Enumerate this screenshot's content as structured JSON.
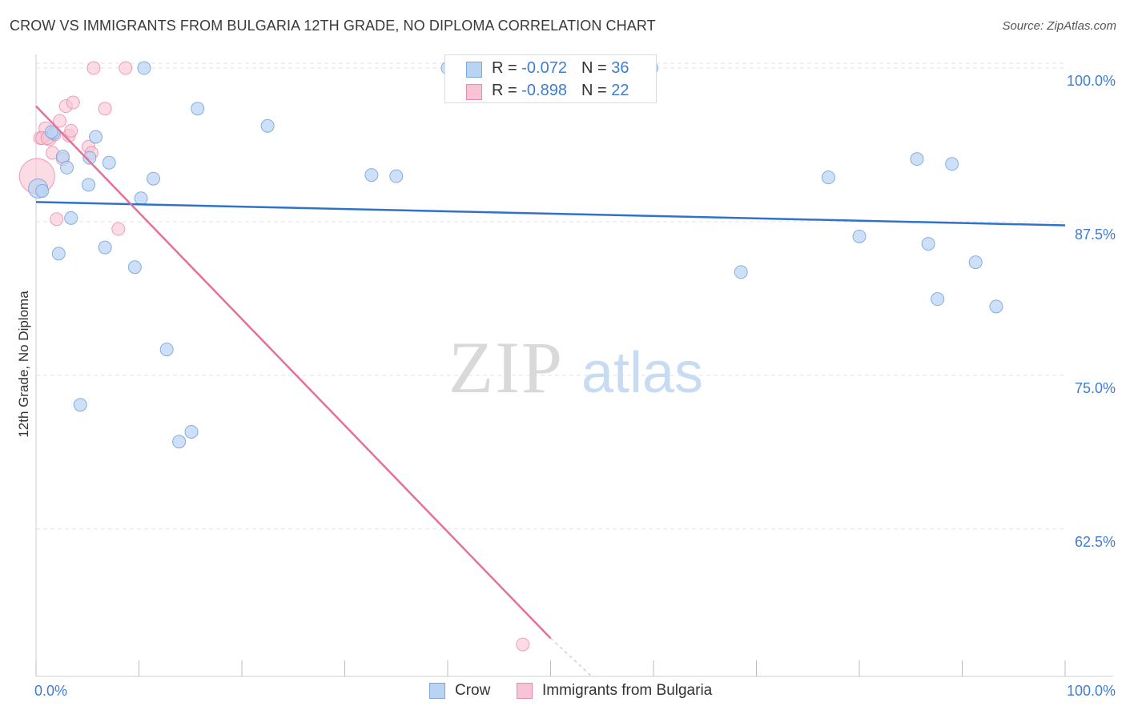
{
  "title": "CROW VS IMMIGRANTS FROM BULGARIA 12TH GRADE, NO DIPLOMA CORRELATION CHART",
  "source": "Source: ZipAtlas.com",
  "watermark": {
    "zip": "ZIP",
    "atlas": "atlas"
  },
  "legend": {
    "row1": {
      "r_label": "R = ",
      "r_value": "-0.072",
      "n_label": "N = ",
      "n_value": "36"
    },
    "row2": {
      "r_label": "R = ",
      "r_value": "-0.898",
      "n_label": "N = ",
      "n_value": "22"
    }
  },
  "bottom_legend": {
    "crow": "Crow",
    "bulgaria": "Immigrants from Bulgaria"
  },
  "colors": {
    "crow_fill": "#b8d3f3",
    "crow_stroke": "#7aa6dd",
    "crow_line": "#2f72cc",
    "bulg_fill": "#f8c4d4",
    "bulg_stroke": "#e88aa9",
    "bulg_line": "#e5709a",
    "axis_label": "#3d7dd6"
  },
  "chart_data": {
    "type": "scatter",
    "title": "CROW VS IMMIGRANTS FROM BULGARIA 12TH GRADE, NO DIPLOMA CORRELATION CHART",
    "xlabel": "",
    "ylabel": "12th Grade, No Diploma",
    "xlim": [
      0,
      100
    ],
    "ylim": [
      50.5,
      101.5
    ],
    "x_tick_labels": [
      "0.0%",
      "100.0%"
    ],
    "y_ticks": [
      100.0,
      87.5,
      75.0,
      62.5
    ],
    "y_tick_labels": [
      "100.0%",
      "87.5%",
      "75.0%",
      "62.5%"
    ],
    "grid": true,
    "series": [
      {
        "name": "Crow",
        "r": -0.072,
        "n": 36,
        "points": [
          [
            0.2,
            90.2
          ],
          [
            0.6,
            90.0
          ],
          [
            1.7,
            94.7
          ],
          [
            2.2,
            84.9
          ],
          [
            2.6,
            92.8
          ],
          [
            3.0,
            91.9
          ],
          [
            3.4,
            87.8
          ],
          [
            4.3,
            72.6
          ],
          [
            5.1,
            90.5
          ],
          [
            5.2,
            92.7
          ],
          [
            5.8,
            94.4
          ],
          [
            6.7,
            85.4
          ],
          [
            7.1,
            92.3
          ],
          [
            9.6,
            83.8
          ],
          [
            10.2,
            89.4
          ],
          [
            10.5,
            100.0
          ],
          [
            11.4,
            91.0
          ],
          [
            12.7,
            77.1
          ],
          [
            13.9,
            69.6
          ],
          [
            15.1,
            70.4
          ],
          [
            15.7,
            96.7
          ],
          [
            22.5,
            95.3
          ],
          [
            32.6,
            91.3
          ],
          [
            35.0,
            91.2
          ],
          [
            40.0,
            100.0
          ],
          [
            59.8,
            100.0
          ],
          [
            68.5,
            83.4
          ],
          [
            77.0,
            91.1
          ],
          [
            80.0,
            86.3
          ],
          [
            85.6,
            92.6
          ],
          [
            86.7,
            85.7
          ],
          [
            87.6,
            81.2
          ],
          [
            89.0,
            92.2
          ],
          [
            91.3,
            84.2
          ],
          [
            93.3,
            80.6
          ],
          [
            1.5,
            94.8
          ]
        ]
      },
      {
        "name": "Immigrants from Bulgaria",
        "r": -0.898,
        "n": 22,
        "points": [
          [
            0.1,
            91.2
          ],
          [
            0.4,
            94.3
          ],
          [
            0.9,
            95.1
          ],
          [
            1.3,
            94.2
          ],
          [
            1.6,
            93.1
          ],
          [
            1.8,
            94.6
          ],
          [
            2.0,
            87.7
          ],
          [
            2.3,
            95.7
          ],
          [
            2.6,
            92.6
          ],
          [
            2.9,
            96.9
          ],
          [
            3.2,
            94.5
          ],
          [
            3.4,
            94.9
          ],
          [
            3.6,
            97.2
          ],
          [
            5.1,
            93.6
          ],
          [
            5.4,
            93.1
          ],
          [
            5.6,
            100.0
          ],
          [
            6.7,
            96.7
          ],
          [
            8.0,
            86.9
          ],
          [
            8.7,
            100.0
          ],
          [
            47.3,
            53.1
          ],
          [
            0.6,
            94.3
          ],
          [
            1.1,
            94.3
          ]
        ]
      }
    ],
    "trend_lines": [
      {
        "series": "Crow",
        "x": [
          0,
          100
        ],
        "y": [
          89.1,
          87.2
        ]
      },
      {
        "series": "Immigrants from Bulgaria",
        "x": [
          0,
          50
        ],
        "y": [
          96.9,
          53.6
        ],
        "dashed_extension_to": [
          54,
          50.5
        ]
      }
    ]
  }
}
